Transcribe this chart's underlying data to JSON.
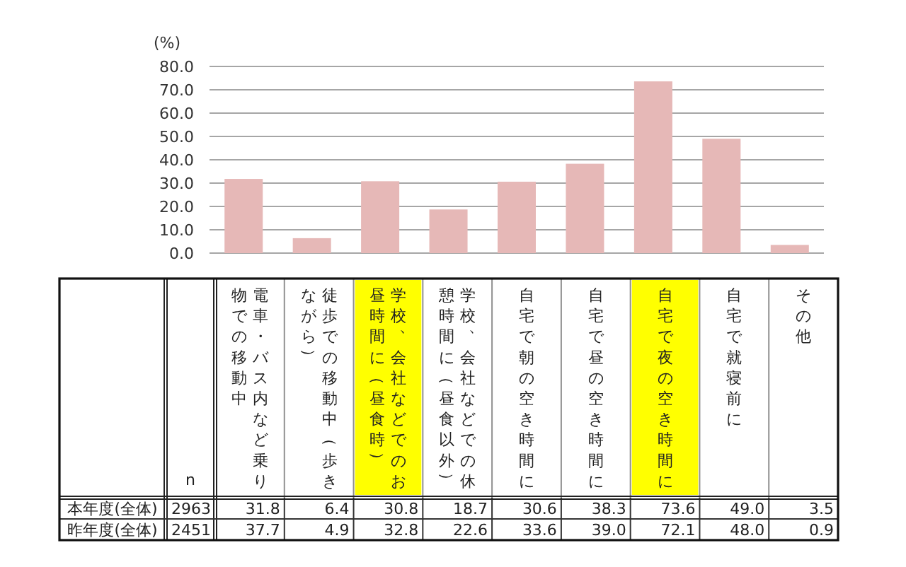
{
  "chart_data": [
    {
      "type": "bar",
      "ylabel": "(%)",
      "categories": [
        "電車・バス内など乗り物での移動中",
        "徒歩での移動中（歩きながら）",
        "学校、会社などでのお昼時間に（昼食時）",
        "学校、会社などでの休憩時間に（昼食以外）",
        "自宅で朝の空き時間に",
        "自宅で昼の空き時間に",
        "自宅で夜の空き時間に",
        "自宅で就寝前に",
        "その他"
      ],
      "values": [
        31.8,
        6.4,
        30.8,
        18.7,
        30.6,
        38.3,
        73.6,
        49.0,
        3.5
      ],
      "color": "#e6b8b7",
      "ylim": [
        0,
        80
      ],
      "yticks": [
        {
          "value": 0,
          "label": "0.0"
        },
        {
          "value": 10,
          "label": "10.0"
        },
        {
          "value": 20,
          "label": "20.0"
        },
        {
          "value": 30,
          "label": "30.0"
        },
        {
          "value": 40,
          "label": "40.0"
        },
        {
          "value": 50,
          "label": "50.0"
        },
        {
          "value": 60,
          "label": "60.0"
        },
        {
          "value": 70,
          "label": "70.0"
        },
        {
          "value": 80,
          "label": "80.0"
        }
      ],
      "grid": "y"
    },
    {
      "type": "other",
      "annotations": [
        "n",
        "本年度(全体)",
        "2963",
        "31.8",
        "6.4",
        "30.8",
        "18.7",
        "30.6",
        "38.3",
        "73.6",
        "49.0",
        "3.5",
        "昨年度(全体)",
        "2451",
        "37.7",
        "4.9",
        "32.8",
        "22.6",
        "33.6",
        "39.0",
        "72.1",
        "48.0",
        "0.9"
      ]
    }
  ]
}
